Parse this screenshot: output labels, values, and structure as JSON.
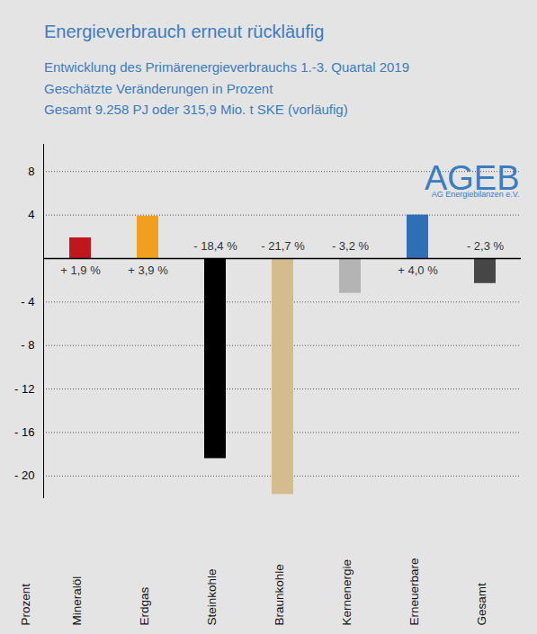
{
  "chart_data": {
    "type": "bar",
    "title": "Energieverbrauch erneut rückläufig",
    "subtitle": [
      "Entwicklung des Primärenergieverbrauchs 1.-3. Quartal 2019",
      "Geschätzte Veränderungen in Prozent",
      "Gesamt 9.258 PJ oder 315,9 Mio. t SKE (vorläufig)"
    ],
    "annotations": [
      "AGEB",
      "AG Energiebilanzen e.V."
    ],
    "ylabel": "Prozent",
    "categories": [
      "Mineralöl",
      "Erdgas",
      "Steinkohle",
      "Braunkohle",
      "Kernenergie",
      "Erneuerbare",
      "Gesamt"
    ],
    "values": [
      1.9,
      3.9,
      -18.4,
      -21.7,
      -3.2,
      4.0,
      -2.3
    ],
    "value_labels": [
      "+ 1,9 %",
      "+ 3,9 %",
      "- 18,4 %",
      "- 21,7 %",
      "- 3,2 %",
      "+ 4,0 %",
      "- 2,3 %"
    ],
    "colors": [
      "#c0161e",
      "#f0a01e",
      "#000000",
      "#d4bc8e",
      "#b4b4b4",
      "#2e6fb6",
      "#464646"
    ],
    "ylim": [
      -22,
      10.5
    ],
    "yticks": [
      8,
      4,
      {
        "value": -4,
        "label": "- 4"
      },
      {
        "value": -8,
        "label": "- 8"
      },
      {
        "value": -12,
        "label": "- 12"
      },
      {
        "value": -16,
        "label": "- 16"
      },
      {
        "value": -20,
        "label": "- 20"
      }
    ],
    "grid": true,
    "data_labels": true
  }
}
